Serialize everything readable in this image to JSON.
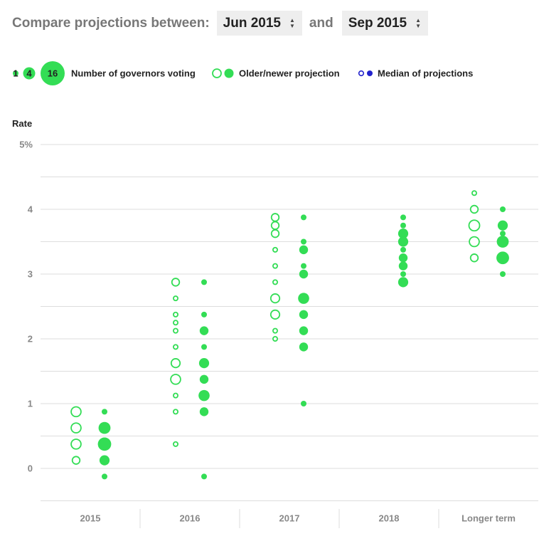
{
  "controls": {
    "label": "Compare projections between:",
    "from_value": "Jun 2015",
    "joiner": "and",
    "to_value": "Sep 2015"
  },
  "legend": {
    "size_samples": [
      "1",
      "4",
      "16"
    ],
    "size_label": "Number of governors voting",
    "older_newer_label": "Older/newer projection",
    "median_label": "Median of projections"
  },
  "colors": {
    "green": "#33dd55",
    "median": "#2222cc",
    "grid": "#dddddd"
  },
  "chart_data": {
    "type": "scatter",
    "ylabel": "Rate",
    "ylim": [
      -0.5,
      5
    ],
    "y_ticks": [
      "0",
      "1",
      "2",
      "3",
      "4",
      "5%"
    ],
    "y_tick_values": [
      0,
      1,
      2,
      3,
      4,
      5
    ],
    "categories": [
      "2015",
      "2016",
      "2017",
      "2018",
      "Longer term"
    ],
    "series": [
      {
        "name": "Older",
        "style": "hollow",
        "points": [
          {
            "x": "2015",
            "y": 0.875,
            "n": 4
          },
          {
            "x": "2015",
            "y": 0.625,
            "n": 4
          },
          {
            "x": "2015",
            "y": 0.375,
            "n": 4
          },
          {
            "x": "2015",
            "y": 0.125,
            "n": 2
          },
          {
            "x": "2016",
            "y": 2.875,
            "n": 2
          },
          {
            "x": "2016",
            "y": 2.625,
            "n": 1
          },
          {
            "x": "2016",
            "y": 2.375,
            "n": 1
          },
          {
            "x": "2016",
            "y": 2.25,
            "n": 1
          },
          {
            "x": "2016",
            "y": 2.125,
            "n": 1
          },
          {
            "x": "2016",
            "y": 1.875,
            "n": 1
          },
          {
            "x": "2016",
            "y": 1.625,
            "n": 3
          },
          {
            "x": "2016",
            "y": 1.375,
            "n": 4
          },
          {
            "x": "2016",
            "y": 1.125,
            "n": 1
          },
          {
            "x": "2016",
            "y": 0.875,
            "n": 1
          },
          {
            "x": "2016",
            "y": 0.375,
            "n": 1
          },
          {
            "x": "2017",
            "y": 3.875,
            "n": 2
          },
          {
            "x": "2017",
            "y": 3.75,
            "n": 2
          },
          {
            "x": "2017",
            "y": 3.625,
            "n": 2
          },
          {
            "x": "2017",
            "y": 3.375,
            "n": 1
          },
          {
            "x": "2017",
            "y": 3.125,
            "n": 1
          },
          {
            "x": "2017",
            "y": 2.875,
            "n": 1
          },
          {
            "x": "2017",
            "y": 2.625,
            "n": 3
          },
          {
            "x": "2017",
            "y": 2.375,
            "n": 3
          },
          {
            "x": "2017",
            "y": 2.125,
            "n": 1
          },
          {
            "x": "2017",
            "y": 2.0,
            "n": 1
          },
          {
            "x": "Longer term",
            "y": 4.25,
            "n": 1
          },
          {
            "x": "Longer term",
            "y": 4.0,
            "n": 2
          },
          {
            "x": "Longer term",
            "y": 3.75,
            "n": 5
          },
          {
            "x": "Longer term",
            "y": 3.5,
            "n": 4
          },
          {
            "x": "Longer term",
            "y": 3.25,
            "n": 2
          }
        ]
      },
      {
        "name": "Newer",
        "style": "filled",
        "points": [
          {
            "x": "2015",
            "y": 0.875,
            "n": 1
          },
          {
            "x": "2015",
            "y": 0.625,
            "n": 5
          },
          {
            "x": "2015",
            "y": 0.375,
            "n": 7
          },
          {
            "x": "2015",
            "y": 0.125,
            "n": 3
          },
          {
            "x": "2015",
            "y": -0.125,
            "n": 1
          },
          {
            "x": "2016",
            "y": 2.875,
            "n": 1
          },
          {
            "x": "2016",
            "y": 2.375,
            "n": 1
          },
          {
            "x": "2016",
            "y": 2.125,
            "n": 2
          },
          {
            "x": "2016",
            "y": 1.875,
            "n": 1
          },
          {
            "x": "2016",
            "y": 1.625,
            "n": 3
          },
          {
            "x": "2016",
            "y": 1.375,
            "n": 2
          },
          {
            "x": "2016",
            "y": 1.125,
            "n": 4
          },
          {
            "x": "2016",
            "y": 0.875,
            "n": 2
          },
          {
            "x": "2016",
            "y": -0.125,
            "n": 1
          },
          {
            "x": "2017",
            "y": 3.875,
            "n": 1
          },
          {
            "x": "2017",
            "y": 3.5,
            "n": 1
          },
          {
            "x": "2017",
            "y": 3.375,
            "n": 2
          },
          {
            "x": "2017",
            "y": 3.125,
            "n": 1
          },
          {
            "x": "2017",
            "y": 3.0,
            "n": 2
          },
          {
            "x": "2017",
            "y": 2.625,
            "n": 4
          },
          {
            "x": "2017",
            "y": 2.375,
            "n": 2
          },
          {
            "x": "2017",
            "y": 2.125,
            "n": 2
          },
          {
            "x": "2017",
            "y": 1.875,
            "n": 2
          },
          {
            "x": "2017",
            "y": 1.0,
            "n": 1
          },
          {
            "x": "2018",
            "y": 3.875,
            "n": 1
          },
          {
            "x": "2018",
            "y": 3.75,
            "n": 1
          },
          {
            "x": "2018",
            "y": 3.625,
            "n": 3
          },
          {
            "x": "2018",
            "y": 3.5,
            "n": 3
          },
          {
            "x": "2018",
            "y": 3.375,
            "n": 1
          },
          {
            "x": "2018",
            "y": 3.25,
            "n": 2
          },
          {
            "x": "2018",
            "y": 3.125,
            "n": 2
          },
          {
            "x": "2018",
            "y": 3.0,
            "n": 1
          },
          {
            "x": "2018",
            "y": 2.875,
            "n": 3
          },
          {
            "x": "Longer term",
            "y": 4.0,
            "n": 1
          },
          {
            "x": "Longer term",
            "y": 3.75,
            "n": 3
          },
          {
            "x": "Longer term",
            "y": 3.625,
            "n": 1
          },
          {
            "x": "Longer term",
            "y": 3.5,
            "n": 5
          },
          {
            "x": "Longer term",
            "y": 3.25,
            "n": 6
          },
          {
            "x": "Longer term",
            "y": 3.0,
            "n": 1
          }
        ]
      }
    ]
  }
}
